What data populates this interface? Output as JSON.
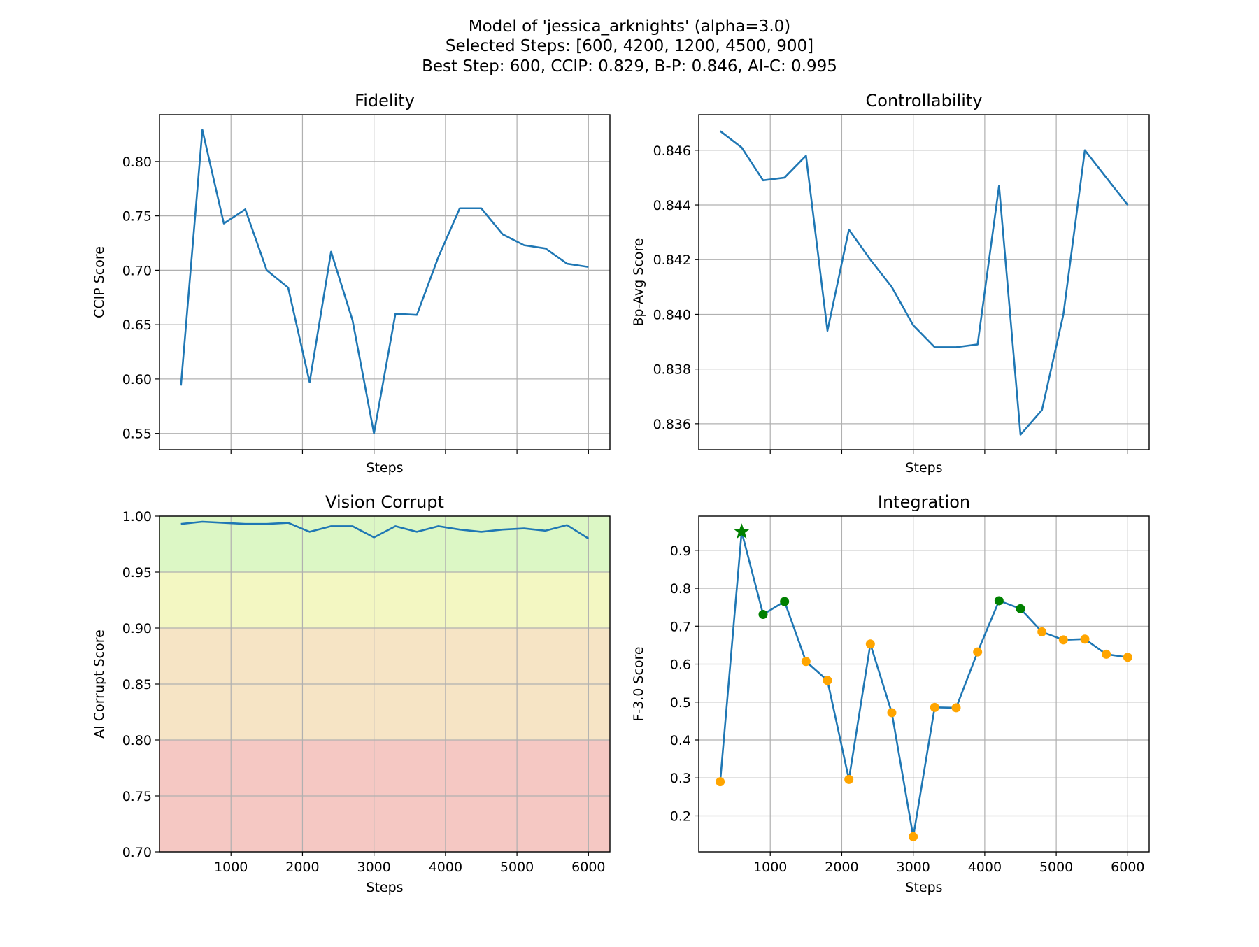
{
  "figure": {
    "title_lines": [
      "Model of 'jessica_arknights' (alpha=3.0)",
      "Selected Steps: [600, 4200, 1200, 4500, 900]",
      "Best Step: 600, CCIP: 0.829, B-P: 0.846, AI-C: 0.995"
    ]
  },
  "chart_data": [
    {
      "type": "line",
      "title": "Fidelity",
      "xlabel": "Steps",
      "ylabel": "CCIP Score",
      "xlim": [
        0,
        6300
      ],
      "ylim": [
        0.535,
        0.843
      ],
      "xticks": [
        1000,
        2000,
        3000,
        4000,
        5000,
        6000
      ],
      "show_xtick_labels": false,
      "yticks": [
        0.55,
        0.6,
        0.65,
        0.7,
        0.75,
        0.8
      ],
      "ytick_labels": [
        "0.55",
        "0.60",
        "0.65",
        "0.70",
        "0.75",
        "0.80"
      ],
      "grid": true,
      "color": "#1f77b4",
      "x": [
        300,
        600,
        900,
        1200,
        1500,
        1800,
        2100,
        2400,
        2700,
        3000,
        3300,
        3600,
        3900,
        4200,
        4500,
        4800,
        5100,
        5400,
        5700,
        6000
      ],
      "y": [
        0.594,
        0.829,
        0.743,
        0.756,
        0.7,
        0.684,
        0.597,
        0.717,
        0.654,
        0.55,
        0.66,
        0.659,
        0.712,
        0.757,
        0.757,
        0.733,
        0.723,
        0.72,
        0.706,
        0.703
      ]
    },
    {
      "type": "line",
      "title": "Controllability",
      "xlabel": "Steps",
      "ylabel": "Bp-Avg Score",
      "xlim": [
        0,
        6300
      ],
      "ylim": [
        0.83505,
        0.8473
      ],
      "xticks": [
        1000,
        2000,
        3000,
        4000,
        5000,
        6000
      ],
      "show_xtick_labels": false,
      "yticks": [
        0.836,
        0.838,
        0.84,
        0.842,
        0.844,
        0.846
      ],
      "ytick_labels": [
        "0.836",
        "0.838",
        "0.840",
        "0.842",
        "0.844",
        "0.846"
      ],
      "grid": true,
      "color": "#1f77b4",
      "x": [
        300,
        600,
        900,
        1200,
        1500,
        1800,
        2100,
        2400,
        2700,
        3000,
        3300,
        3600,
        3900,
        4200,
        4500,
        4800,
        5100,
        5400,
        5700,
        6000
      ],
      "y": [
        0.8467,
        0.8461,
        0.8449,
        0.845,
        0.8458,
        0.8394,
        0.8431,
        0.842,
        0.841,
        0.8396,
        0.8388,
        0.8388,
        0.8389,
        0.8447,
        0.8356,
        0.8365,
        0.84,
        0.846,
        0.845,
        0.844
      ]
    },
    {
      "type": "line",
      "title": "Vision Corrupt",
      "xlabel": "Steps",
      "ylabel": "AI Corrupt Score",
      "xlim": [
        0,
        6300
      ],
      "ylim": [
        0.7,
        1.0
      ],
      "xticks": [
        1000,
        2000,
        3000,
        4000,
        5000,
        6000
      ],
      "xtick_labels": [
        "1000",
        "2000",
        "3000",
        "4000",
        "5000",
        "6000"
      ],
      "show_xtick_labels": true,
      "yticks": [
        0.7,
        0.75,
        0.8,
        0.85,
        0.9,
        0.95,
        1.0
      ],
      "ytick_labels": [
        "0.70",
        "0.75",
        "0.80",
        "0.85",
        "0.90",
        "0.95",
        "1.00"
      ],
      "grid": true,
      "color": "#1f77b4",
      "bands": [
        {
          "from": 0.95,
          "to": 1.0,
          "color": "#dcf7c5"
        },
        {
          "from": 0.9,
          "to": 0.95,
          "color": "#f3f7c2"
        },
        {
          "from": 0.8,
          "to": 0.9,
          "color": "#f6e4c5"
        },
        {
          "from": 0.7,
          "to": 0.8,
          "color": "#f5c8c3"
        }
      ],
      "x": [
        300,
        600,
        900,
        1200,
        1500,
        1800,
        2100,
        2400,
        2700,
        3000,
        3300,
        3600,
        3900,
        4200,
        4500,
        4800,
        5100,
        5400,
        5700,
        6000
      ],
      "y": [
        0.993,
        0.995,
        0.994,
        0.993,
        0.993,
        0.994,
        0.986,
        0.991,
        0.991,
        0.981,
        0.991,
        0.986,
        0.991,
        0.988,
        0.986,
        0.988,
        0.989,
        0.987,
        0.992,
        0.98
      ]
    },
    {
      "type": "line",
      "title": "Integration",
      "xlabel": "Steps",
      "ylabel": "F-3.0 Score",
      "xlim": [
        0,
        6300
      ],
      "ylim": [
        0.105,
        0.99
      ],
      "xticks": [
        1000,
        2000,
        3000,
        4000,
        5000,
        6000
      ],
      "xtick_labels": [
        "1000",
        "2000",
        "3000",
        "4000",
        "5000",
        "6000"
      ],
      "show_xtick_labels": true,
      "yticks": [
        0.2,
        0.3,
        0.4,
        0.5,
        0.6,
        0.7,
        0.8,
        0.9
      ],
      "ytick_labels": [
        "0.2",
        "0.3",
        "0.4",
        "0.5",
        "0.6",
        "0.7",
        "0.8",
        "0.9"
      ],
      "grid": true,
      "color": "#1f77b4",
      "marker_color": "#ffa500",
      "selected_color": "#008000",
      "selected_steps": [
        900,
        1200,
        4200,
        4500
      ],
      "best_step": 600,
      "x": [
        300,
        600,
        900,
        1200,
        1500,
        1800,
        2100,
        2400,
        2700,
        3000,
        3300,
        3600,
        3900,
        4200,
        4500,
        4800,
        5100,
        5400,
        5700,
        6000
      ],
      "y": [
        0.29,
        0.949,
        0.731,
        0.765,
        0.607,
        0.557,
        0.296,
        0.653,
        0.472,
        0.145,
        0.486,
        0.485,
        0.632,
        0.767,
        0.746,
        0.685,
        0.664,
        0.666,
        0.626,
        0.618
      ]
    }
  ]
}
